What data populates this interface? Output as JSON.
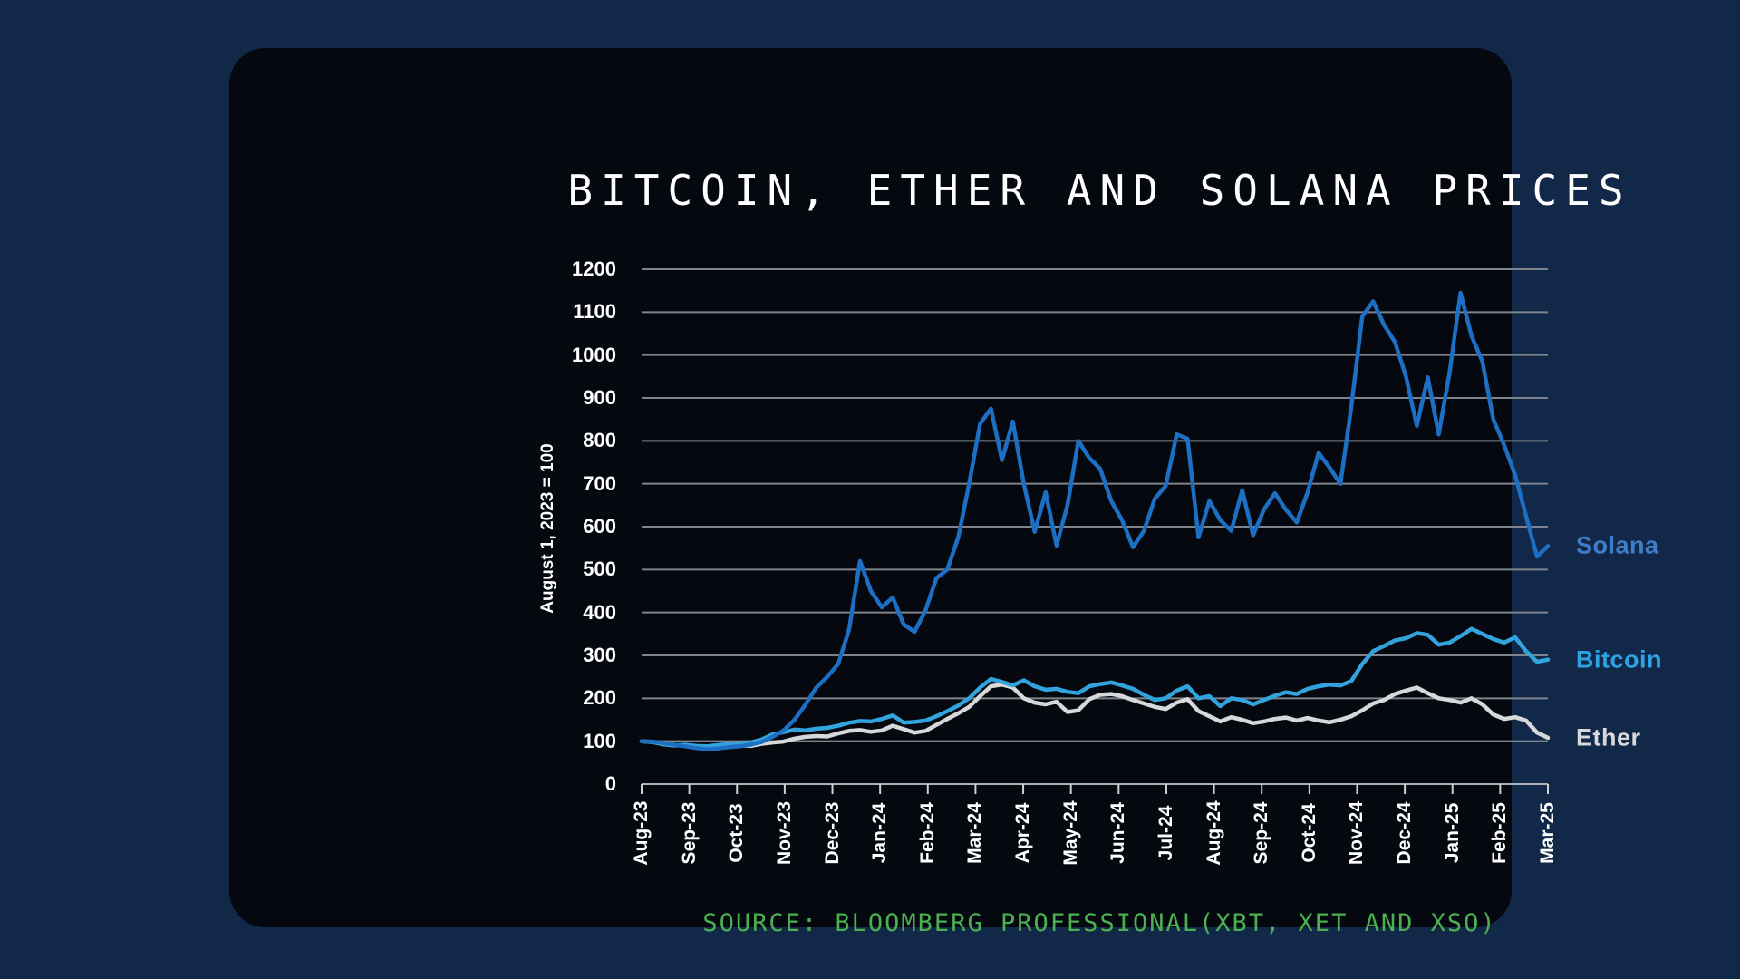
{
  "title": "BITCOIN, ETHER AND SOLANA PRICES",
  "source": "SOURCE: BLOOMBERG PROFESSIONAL(XBT, XET AND XSO)",
  "colors": {
    "page_background": "#112849",
    "panel_background": "#05080f",
    "gridline": "#7f848c",
    "axis_line": "#aeb2b8",
    "tick_mark": "#cdd1d6",
    "axis_text": "#ffffff",
    "title_text": "#ffffff",
    "source_text": "#4bb052"
  },
  "chart_data": {
    "type": "line",
    "title": "BITCOIN, ETHER AND SOLANA PRICES",
    "xlabel": "",
    "ylabel": "August 1, 2023 = 100",
    "ylim": [
      0,
      1200
    ],
    "y_tick_step": 100,
    "y_ticks": [
      0,
      100,
      200,
      300,
      400,
      500,
      600,
      700,
      800,
      900,
      1000,
      1100,
      1200
    ],
    "grid": "horizontal",
    "legend_position": "right-of-line-ends",
    "sampling": "approx-weekly, Aug 2023 to Mar 2025",
    "categories": [
      "Aug-23",
      "Sep-23",
      "Oct-23",
      "Nov-23",
      "Dec-23",
      "Jan-24",
      "Feb-24",
      "Mar-24",
      "Apr-24",
      "May-24",
      "Jun-24",
      "Jul-24",
      "Aug-24",
      "Sep-24",
      "Oct-24",
      "Nov-24",
      "Dec-24",
      "Jan-25",
      "Feb-25",
      "Mar-25"
    ],
    "series": [
      {
        "name": "Ether",
        "color": "#d7d8da",
        "label_color": "#d7d8da",
        "values": [
          100,
          98,
          93,
          90,
          91,
          88,
          85,
          87,
          89,
          90,
          89,
          94,
          97,
          99,
          106,
          110,
          112,
          111,
          118,
          124,
          126,
          122,
          125,
          136,
          128,
          120,
          124,
          138,
          152,
          165,
          180,
          205,
          228,
          232,
          225,
          200,
          190,
          186,
          192,
          168,
          172,
          198,
          208,
          210,
          205,
          196,
          188,
          180,
          175,
          190,
          198,
          170,
          158,
          146,
          156,
          150,
          142,
          146,
          152,
          155,
          148,
          154,
          148,
          144,
          150,
          158,
          172,
          188,
          196,
          210,
          218,
          225,
          212,
          200,
          196,
          190,
          200,
          186,
          162,
          152,
          156,
          148,
          120,
          108
        ]
      },
      {
        "name": "Bitcoin",
        "color": "#33a3dd",
        "label_color": "#2fa2e2",
        "values": [
          100,
          98,
          93,
          90,
          92,
          89,
          88,
          91,
          93,
          95,
          97,
          104,
          116,
          121,
          127,
          125,
          129,
          131,
          136,
          143,
          147,
          146,
          152,
          160,
          143,
          145,
          148,
          158,
          170,
          183,
          200,
          225,
          245,
          238,
          230,
          242,
          228,
          220,
          222,
          215,
          212,
          228,
          233,
          237,
          230,
          222,
          208,
          196,
          200,
          218,
          228,
          200,
          205,
          182,
          200,
          196,
          186,
          196,
          206,
          214,
          210,
          222,
          228,
          232,
          230,
          240,
          280,
          310,
          322,
          335,
          340,
          352,
          348,
          325,
          330,
          345,
          362,
          350,
          338,
          330,
          342,
          310,
          285,
          290
        ]
      },
      {
        "name": "Solana",
        "color": "#1c6fc2",
        "label_color": "#3e7ec9",
        "values": [
          100,
          99,
          96,
          92,
          88,
          84,
          81,
          83,
          86,
          88,
          92,
          98,
          110,
          125,
          150,
          185,
          225,
          250,
          280,
          360,
          520,
          450,
          412,
          435,
          372,
          355,
          405,
          480,
          500,
          575,
          700,
          840,
          875,
          755,
          845,
          700,
          588,
          680,
          556,
          650,
          800,
          760,
          735,
          660,
          615,
          552,
          590,
          665,
          695,
          815,
          805,
          575,
          660,
          615,
          590,
          685,
          580,
          640,
          678,
          640,
          610,
          680,
          772,
          738,
          700,
          880,
          1090,
          1125,
          1070,
          1030,
          950,
          835,
          948,
          815,
          960,
          1145,
          1045,
          985,
          850,
          790,
          720,
          625,
          530,
          555
        ]
      }
    ]
  }
}
